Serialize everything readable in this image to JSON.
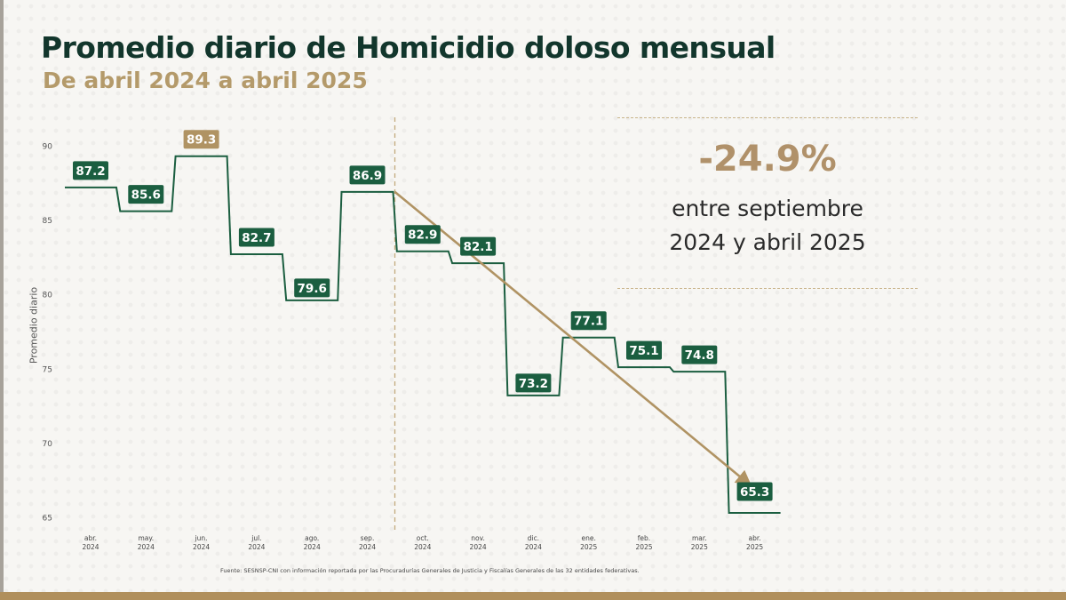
{
  "title": "Promedio diario de Homicidio doloso mensual",
  "subtitle": "De abril 2024 a abril 2025",
  "colors": {
    "title": "#12362c",
    "subtitle": "#b49a6a",
    "series": "#1b5e40",
    "highlight": "#b09363",
    "trend": "#b09363",
    "bottom_band": "#b08f5c"
  },
  "callout": {
    "value": "-24.9%",
    "line1": "entre septiembre",
    "line2": "2024 y abril 2025"
  },
  "source": "Fuente: SESNSP-CNI con información reportada por las Procuradurías Generales de Justicia y Fiscalías Generales de las 32 entidades federativas.",
  "chart_data": {
    "type": "line",
    "step": true,
    "grid": false,
    "ylabel": "Promedio diario",
    "ylim": [
      65,
      90
    ],
    "yticks": [
      90,
      85,
      80,
      75,
      70,
      65
    ],
    "categories": [
      [
        "abr.",
        "2024"
      ],
      [
        "may.",
        "2024"
      ],
      [
        "jun.",
        "2024"
      ],
      [
        "jul.",
        "2024"
      ],
      [
        "ago.",
        "2024"
      ],
      [
        "sep.",
        "2024"
      ],
      [
        "oct.",
        "2024"
      ],
      [
        "nov.",
        "2024"
      ],
      [
        "dic.",
        "2024"
      ],
      [
        "ene.",
        "2025"
      ],
      [
        "feb.",
        "2025"
      ],
      [
        "mar.",
        "2025"
      ],
      [
        "abr.",
        "2025"
      ]
    ],
    "values": [
      87.2,
      85.6,
      89.3,
      82.7,
      79.6,
      86.9,
      82.9,
      82.1,
      73.2,
      77.1,
      75.1,
      74.8,
      65.3
    ],
    "data_labels": [
      "87.2",
      "85.6",
      "89.3",
      "82.7",
      "79.6",
      "86.9",
      "82.9",
      "82.1",
      "73.2",
      "77.1",
      "75.1",
      "74.8",
      "65.3"
    ],
    "highlight_index": 2,
    "reference_line": {
      "category": "sep.",
      "year": "2024",
      "style": "dashed"
    },
    "trend_arrow": {
      "from": {
        "category": "sep. 2024",
        "value": 86.9
      },
      "to": {
        "category": "abr. 2025",
        "value": 65.3
      }
    }
  }
}
